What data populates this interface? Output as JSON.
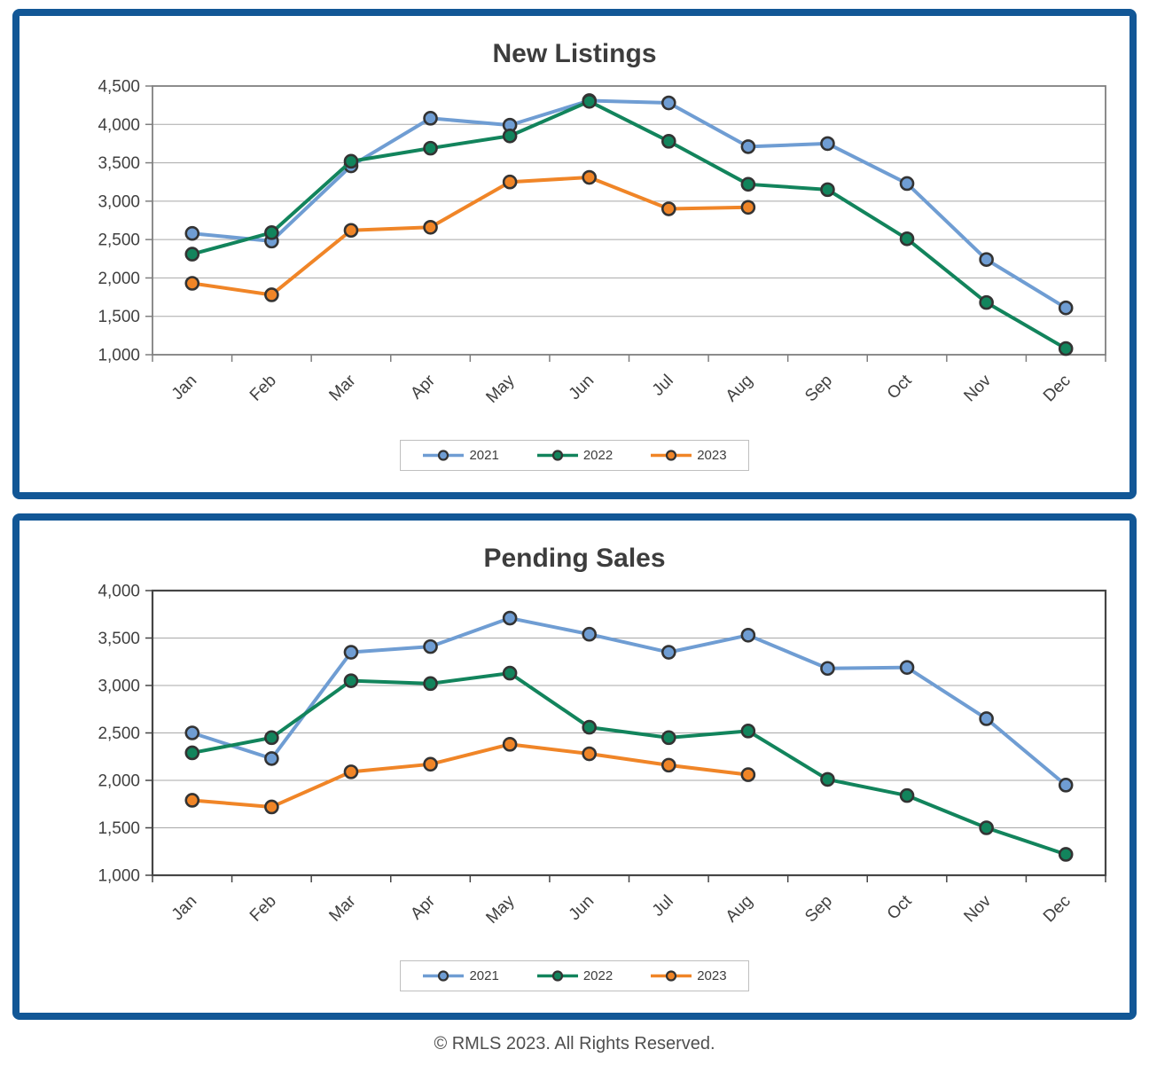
{
  "page": {
    "footer": "© RMLS 2023. All Rights Reserved."
  },
  "colors": {
    "frame_border": "#125796",
    "background": "#FFFFFF",
    "grid": "#A8A8A8",
    "marker_stroke": "#333333",
    "title_text": "#3D3D3D",
    "tick_text": "#404040",
    "legend_border": "#BFBFBF",
    "footer_text": "#4F4F4F",
    "series_2021": "#6F9DD3",
    "series_2022": "#12845C",
    "series_2023": "#F08527"
  },
  "chart_data": [
    {
      "type": "line",
      "title": "New Listings",
      "xlabel": "",
      "ylabel": "",
      "grid": true,
      "legend_position": "bottom",
      "ylim": [
        1000,
        4500
      ],
      "ytick_step": 500,
      "axis_color": "#7F7F7F",
      "axis_width": 1.8,
      "categories": [
        "Jan",
        "Feb",
        "Mar",
        "Apr",
        "May",
        "Jun",
        "Jul",
        "Aug",
        "Sep",
        "Oct",
        "Nov",
        "Dec"
      ],
      "series": [
        {
          "name": "2021",
          "color": "#6F9DD3",
          "values": [
            2580,
            2480,
            3460,
            4080,
            3990,
            4310,
            4280,
            3710,
            3750,
            3230,
            2240,
            1610
          ]
        },
        {
          "name": "2022",
          "color": "#12845C",
          "values": [
            2310,
            2590,
            3520,
            3690,
            3850,
            4300,
            3780,
            3220,
            3150,
            2510,
            1680,
            1080
          ]
        },
        {
          "name": "2023",
          "color": "#F08527",
          "values": [
            1930,
            1780,
            2620,
            2660,
            3250,
            3310,
            2900,
            2920,
            null,
            null,
            null,
            null
          ]
        }
      ]
    },
    {
      "type": "line",
      "title": "Pending Sales",
      "xlabel": "",
      "ylabel": "",
      "grid": true,
      "legend_position": "bottom",
      "ylim": [
        1000,
        4000
      ],
      "ytick_step": 500,
      "axis_color": "#454545",
      "axis_width": 2.2,
      "categories": [
        "Jan",
        "Feb",
        "Mar",
        "Apr",
        "May",
        "Jun",
        "Jul",
        "Aug",
        "Sep",
        "Oct",
        "Nov",
        "Dec"
      ],
      "series": [
        {
          "name": "2021",
          "color": "#6F9DD3",
          "values": [
            2500,
            2230,
            3350,
            3410,
            3710,
            3540,
            3350,
            3530,
            3180,
            3190,
            2650,
            1950
          ]
        },
        {
          "name": "2022",
          "color": "#12845C",
          "values": [
            2290,
            2450,
            3050,
            3020,
            3130,
            2560,
            2450,
            2520,
            2010,
            1840,
            1500,
            1220
          ]
        },
        {
          "name": "2023",
          "color": "#F08527",
          "values": [
            1790,
            1720,
            2090,
            2170,
            2380,
            2280,
            2160,
            2060,
            null,
            null,
            null,
            null
          ]
        }
      ]
    }
  ]
}
